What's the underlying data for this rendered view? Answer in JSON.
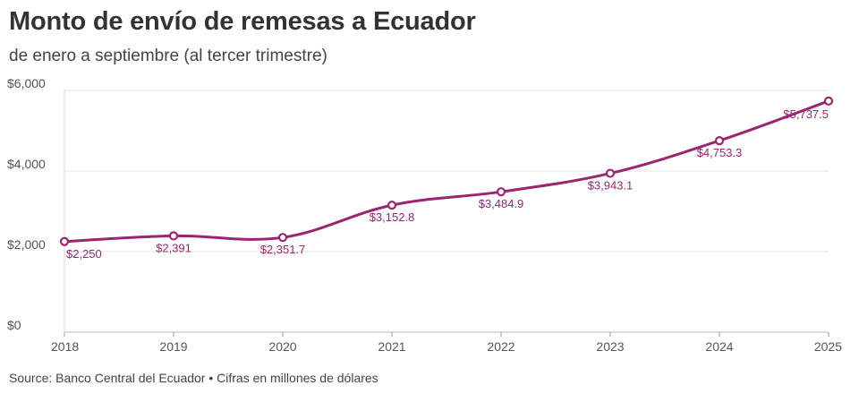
{
  "chart_data": {
    "type": "line",
    "title": "Monto de envío de remesas a Ecuador",
    "subtitle": "de enero a septiembre (al tercer trimestre)",
    "x": [
      2018,
      2019,
      2020,
      2021,
      2022,
      2023,
      2024,
      2025
    ],
    "x_tick_labels": [
      "2018",
      "2019",
      "2020",
      "2021",
      "2022",
      "2023",
      "2024",
      "2025"
    ],
    "series": [
      {
        "name": "Remesas",
        "values": [
          2250,
          2391,
          2351.7,
          3152.8,
          3484.9,
          3943.1,
          4753.3,
          5737.5
        ],
        "data_labels": [
          "$2,250",
          "$2,391",
          "$2,351.7",
          "$3,152.8",
          "$3,484.9",
          "$3,943.1",
          "$4,753.3",
          "$5,737.5"
        ]
      }
    ],
    "y_ticks": [
      0,
      2000,
      4000,
      6000
    ],
    "y_tick_labels": [
      "$0",
      "$2,000",
      "$4,000",
      "$6,000"
    ],
    "ylim": [
      0,
      6000
    ],
    "xlabel": "",
    "ylabel": "",
    "grid": true,
    "color": "#9b2570",
    "source": "Source: Banco Central del Ecuador • Cifras en millones de dólares"
  }
}
